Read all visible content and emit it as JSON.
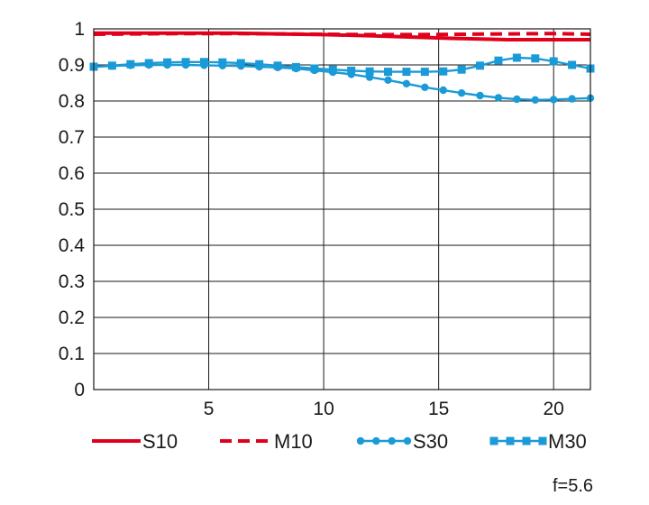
{
  "chart_data": {
    "type": "line",
    "title": "",
    "xlabel": "",
    "ylabel": "",
    "xlim": [
      0,
      21.6
    ],
    "ylim": [
      0,
      1
    ],
    "grid": true,
    "x_ticks": [
      5,
      10,
      15,
      20
    ],
    "x_tick_labels": [
      "5",
      "10",
      "15",
      "20"
    ],
    "y_ticks": [
      0,
      0.1,
      0.2,
      0.3,
      0.4,
      0.5,
      0.6,
      0.7,
      0.8,
      0.9,
      1
    ],
    "y_tick_labels": [
      "0",
      "0.1",
      "0.2",
      "0.3",
      "0.4",
      "0.5",
      "0.6",
      "0.7",
      "0.8",
      "0.9",
      "1"
    ],
    "legend_position": "bottom",
    "annotation": "f=5.6",
    "series": [
      {
        "name": "S10",
        "color": "#e0001b",
        "style": "solid",
        "marker": "none",
        "x": [
          0,
          2,
          4,
          6,
          8,
          10,
          12,
          14,
          16,
          18,
          20,
          21.6
        ],
        "y": [
          0.988,
          0.988,
          0.988,
          0.988,
          0.986,
          0.984,
          0.981,
          0.977,
          0.973,
          0.97,
          0.97,
          0.97
        ]
      },
      {
        "name": "M10",
        "color": "#e0001b",
        "style": "dashed",
        "marker": "none",
        "x": [
          0,
          2,
          4,
          6,
          8,
          10,
          12,
          14,
          16,
          18,
          20,
          21.6
        ],
        "y": [
          0.985,
          0.986,
          0.987,
          0.987,
          0.986,
          0.985,
          0.984,
          0.984,
          0.985,
          0.986,
          0.987,
          0.985
        ]
      },
      {
        "name": "S30",
        "color": "#1a9ad6",
        "style": "solid",
        "marker": "circle",
        "x": [
          0,
          0.8,
          1.6,
          2.4,
          3.2,
          4.0,
          4.8,
          5.6,
          6.4,
          7.2,
          8.0,
          8.8,
          9.6,
          10.4,
          11.2,
          12.0,
          12.8,
          13.6,
          14.4,
          15.2,
          16.0,
          16.8,
          17.6,
          18.4,
          19.2,
          20.0,
          20.8,
          21.6
        ],
        "y": [
          0.895,
          0.897,
          0.899,
          0.9,
          0.9,
          0.9,
          0.899,
          0.898,
          0.897,
          0.895,
          0.893,
          0.89,
          0.885,
          0.88,
          0.874,
          0.866,
          0.858,
          0.848,
          0.838,
          0.83,
          0.822,
          0.815,
          0.809,
          0.805,
          0.803,
          0.804,
          0.806,
          0.808
        ]
      },
      {
        "name": "M30",
        "color": "#1a9ad6",
        "style": "solid",
        "marker": "square",
        "x": [
          0,
          0.8,
          1.6,
          2.4,
          3.2,
          4.0,
          4.8,
          5.6,
          6.4,
          7.2,
          8.0,
          8.8,
          9.6,
          10.4,
          11.2,
          12.0,
          12.8,
          13.6,
          14.4,
          15.2,
          16.0,
          16.8,
          17.6,
          18.4,
          19.2,
          20.0,
          20.8,
          21.6
        ],
        "y": [
          0.895,
          0.898,
          0.902,
          0.905,
          0.907,
          0.908,
          0.908,
          0.907,
          0.905,
          0.902,
          0.898,
          0.894,
          0.89,
          0.887,
          0.884,
          0.882,
          0.881,
          0.881,
          0.881,
          0.882,
          0.887,
          0.898,
          0.912,
          0.92,
          0.918,
          0.91,
          0.9,
          0.89
        ]
      }
    ]
  }
}
